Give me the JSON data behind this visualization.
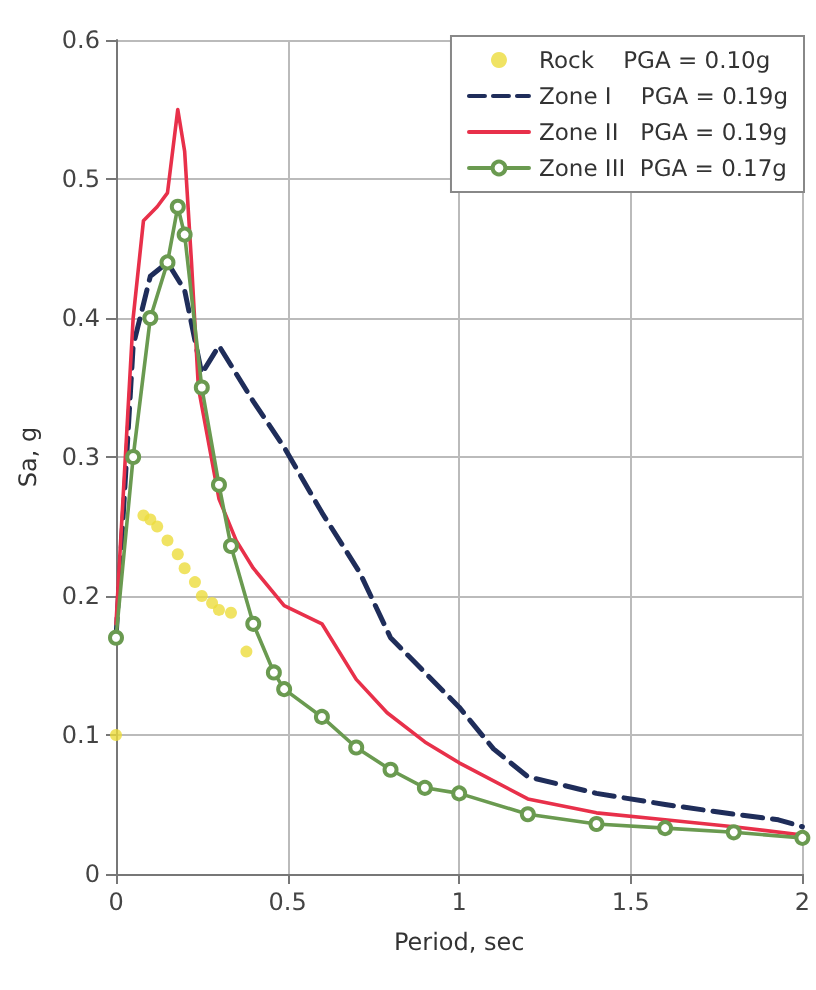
{
  "chart_data": {
    "type": "line",
    "xlabel": "Period, sec",
    "ylabel": "Sa, g",
    "xlim": [
      0,
      2
    ],
    "xticks": [
      0,
      0.5,
      1,
      1.5,
      2
    ],
    "ylim": [
      0,
      0.6
    ],
    "yticks": [
      0,
      0.1,
      0.2,
      0.3,
      0.4,
      0.5,
      0.6
    ],
    "grid": true,
    "legend": "top right",
    "series": [
      {
        "name": "Rock    PGA = 0.10g",
        "type": "scatter",
        "marker": "circle",
        "color": "#ecdc3c",
        "x": [
          0,
          0.08,
          0.1,
          0.12,
          0.15,
          0.18,
          0.2,
          0.23,
          0.25,
          0.28,
          0.3,
          0.335,
          0.38
        ],
        "values": [
          0.1,
          0.258,
          0.255,
          0.25,
          0.24,
          0.23,
          0.22,
          0.21,
          0.2,
          0.195,
          0.19,
          0.188,
          0.16
        ]
      },
      {
        "name": "Zone I    PGA = 0.19g",
        "line_style": "dashed",
        "marker": "none",
        "color": "#1f2d5a",
        "x": [
          0,
          0.05,
          0.1,
          0.15,
          0.2,
          0.25,
          0.3,
          0.4,
          0.49,
          0.6,
          0.71,
          0.8,
          0.9,
          1,
          1.1,
          1.2,
          1.4,
          1.6,
          1.8,
          1.93,
          2
        ],
        "values": [
          0.17,
          0.38,
          0.43,
          0.44,
          0.42,
          0.36,
          0.38,
          0.34,
          0.307,
          0.26,
          0.217,
          0.17,
          0.145,
          0.12,
          0.09,
          0.07,
          0.058,
          0.05,
          0.043,
          0.039,
          0.034
        ]
      },
      {
        "name": "Zone II   PGA = 0.19g",
        "line_style": "solid",
        "marker": "none",
        "color": "#e8304a",
        "x": [
          0,
          0.05,
          0.08,
          0.12,
          0.15,
          0.18,
          0.2,
          0.22,
          0.24,
          0.3,
          0.35,
          0.4,
          0.49,
          0.6,
          0.7,
          0.79,
          0.9,
          1,
          1.2,
          1.4,
          1.6,
          1.8,
          2
        ],
        "values": [
          0.18,
          0.4,
          0.47,
          0.48,
          0.49,
          0.55,
          0.52,
          0.44,
          0.35,
          0.27,
          0.24,
          0.22,
          0.193,
          0.18,
          0.14,
          0.116,
          0.095,
          0.08,
          0.054,
          0.044,
          0.039,
          0.034,
          0.028
        ]
      },
      {
        "name": "Zone III  PGA = 0.17g",
        "line_style": "solid",
        "marker": "circle",
        "color": "#6a9a50",
        "x": [
          0,
          0.05,
          0.1,
          0.15,
          0.18,
          0.2,
          0.25,
          0.3,
          0.335,
          0.4,
          0.46,
          0.49,
          0.6,
          0.7,
          0.8,
          0.9,
          1,
          1.2,
          1.4,
          1.6,
          1.8,
          2
        ],
        "values": [
          0.17,
          0.3,
          0.4,
          0.44,
          0.48,
          0.46,
          0.35,
          0.28,
          0.236,
          0.18,
          0.145,
          0.133,
          0.113,
          0.091,
          0.075,
          0.062,
          0.058,
          0.043,
          0.036,
          0.033,
          0.03,
          0.026
        ]
      }
    ]
  }
}
